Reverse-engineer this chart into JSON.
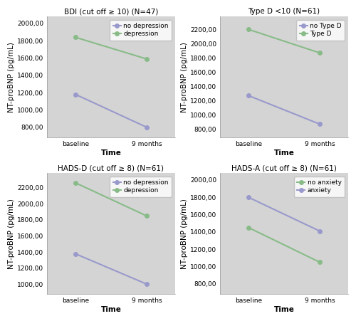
{
  "panels": [
    {
      "title": "BDI (cut off ≥ 10) (N=47)",
      "lines": [
        {
          "label": "no depression",
          "color": "#9999cc",
          "baseline": 1180,
          "nine_months": 800
        },
        {
          "label": "depression",
          "color": "#88bb88",
          "baseline": 1840,
          "nine_months": 1590
        }
      ],
      "ylim": [
        680,
        2080
      ],
      "yticks": [
        800,
        1000,
        1200,
        1400,
        1600,
        1800,
        2000
      ]
    },
    {
      "title": "Type D <10 (N=61)",
      "lines": [
        {
          "label": "no Type D",
          "color": "#9999cc",
          "baseline": 1270,
          "nine_months": 870
        },
        {
          "label": "Type D",
          "color": "#88bb88",
          "baseline": 2200,
          "nine_months": 1870
        }
      ],
      "ylim": [
        680,
        2380
      ],
      "yticks": [
        800,
        1000,
        1200,
        1400,
        1600,
        1800,
        2000,
        2200
      ]
    },
    {
      "title": "HADS-D (cut off ≥ 8) (N=61)",
      "lines": [
        {
          "label": "no depression",
          "color": "#9999cc",
          "baseline": 1380,
          "nine_months": 1005
        },
        {
          "label": "depression",
          "color": "#88bb88",
          "baseline": 2260,
          "nine_months": 1850
        }
      ],
      "ylim": [
        880,
        2380
      ],
      "yticks": [
        1000,
        1200,
        1400,
        1600,
        1800,
        2000,
        2200
      ]
    },
    {
      "title": "HADS-A (cut off ≥ 8) (N=61)",
      "lines": [
        {
          "label": "no anxiety",
          "color": "#88bb88",
          "baseline": 1450,
          "nine_months": 1050
        },
        {
          "label": "anxiety",
          "color": "#9999cc",
          "baseline": 1800,
          "nine_months": 1410
        }
      ],
      "ylim": [
        680,
        2080
      ],
      "yticks": [
        800,
        1000,
        1200,
        1400,
        1600,
        1800,
        2000
      ]
    }
  ],
  "xlabel": "Time",
  "ylabel": "NT-proBNP (pg/mL)",
  "xticklabels": [
    "baseline",
    "9 months"
  ],
  "bg_color": "#d4d4d4",
  "marker": "o",
  "marker_size": 4,
  "linewidth": 1.5,
  "tick_label_size": 6.5,
  "axis_label_size": 7.5,
  "title_size": 7.5,
  "legend_size": 6.5
}
